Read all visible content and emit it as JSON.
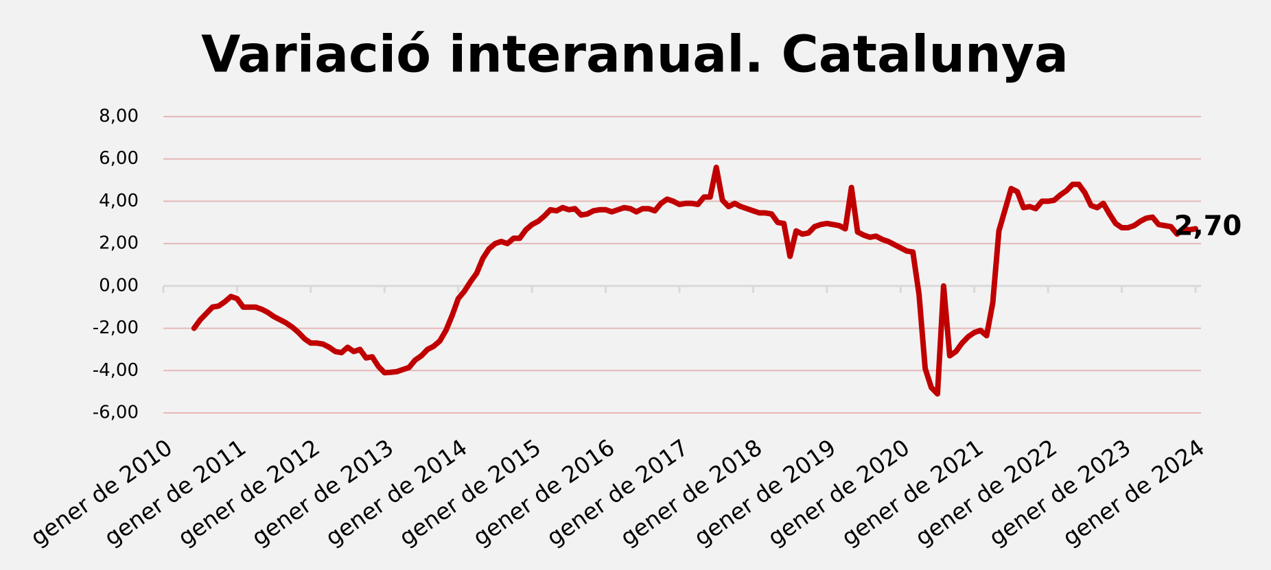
{
  "chart_data": {
    "type": "line",
    "title": "Variació interanual. Catalunya",
    "categories": [
      "gener de 2010",
      null,
      null,
      null,
      null,
      null,
      null,
      null,
      null,
      null,
      null,
      null,
      "gener de 2011",
      null,
      null,
      null,
      null,
      null,
      null,
      null,
      null,
      null,
      null,
      null,
      "gener de 2012",
      null,
      null,
      null,
      null,
      null,
      null,
      null,
      null,
      null,
      null,
      null,
      "gener de 2013",
      null,
      null,
      null,
      null,
      null,
      null,
      null,
      null,
      null,
      null,
      null,
      "gener de 2014",
      null,
      null,
      null,
      null,
      null,
      null,
      null,
      null,
      null,
      null,
      null,
      "gener de 2015",
      null,
      null,
      null,
      null,
      null,
      null,
      null,
      null,
      null,
      null,
      null,
      "gener de 2016",
      null,
      null,
      null,
      null,
      null,
      null,
      null,
      null,
      null,
      null,
      null,
      "gener de 2017",
      null,
      null,
      null,
      null,
      null,
      null,
      null,
      null,
      null,
      null,
      null,
      "gener de 2018",
      null,
      null,
      null,
      null,
      null,
      null,
      null,
      null,
      null,
      null,
      null,
      "gener de 2019",
      null,
      null,
      null,
      null,
      null,
      null,
      null,
      null,
      null,
      null,
      null,
      "gener de 2020",
      null,
      null,
      null,
      null,
      null,
      null,
      null,
      null,
      null,
      null,
      null,
      "gener de 2021",
      null,
      null,
      null,
      null,
      null,
      null,
      null,
      null,
      null,
      null,
      null,
      "gener de 2022",
      null,
      null,
      null,
      null,
      null,
      null,
      null,
      null,
      null,
      null,
      null,
      "gener de 2023",
      null,
      null,
      null,
      null,
      null,
      null,
      null,
      null,
      null,
      null,
      null,
      "gener de 2024"
    ],
    "values": [
      null,
      null,
      null,
      null,
      null,
      -2.0,
      -1.6,
      -1.3,
      -1.0,
      -0.95,
      -0.75,
      -0.5,
      -0.6,
      -1.0,
      -1.0,
      -1.0,
      -1.1,
      -1.25,
      -1.45,
      -1.6,
      -1.75,
      -1.95,
      -2.2,
      -2.5,
      -2.7,
      -2.7,
      -2.75,
      -2.9,
      -3.1,
      -3.15,
      -2.9,
      -3.1,
      -3.0,
      -3.4,
      -3.35,
      -3.8,
      -4.1,
      -4.08,
      -4.05,
      -3.95,
      -3.85,
      -3.5,
      -3.3,
      -3.0,
      -2.85,
      -2.6,
      -2.1,
      -1.4,
      -0.6,
      -0.25,
      0.2,
      0.6,
      1.3,
      1.75,
      2.0,
      2.1,
      2.0,
      2.25,
      2.25,
      2.65,
      2.9,
      3.05,
      3.3,
      3.6,
      3.55,
      3.7,
      3.6,
      3.65,
      3.35,
      3.4,
      3.55,
      3.6,
      3.6,
      3.5,
      3.6,
      3.7,
      3.65,
      3.5,
      3.65,
      3.65,
      3.55,
      3.9,
      4.1,
      4.0,
      3.85,
      3.9,
      3.9,
      3.85,
      4.2,
      4.2,
      5.6,
      4.05,
      3.75,
      3.9,
      3.75,
      3.65,
      3.55,
      3.45,
      3.45,
      3.4,
      3.0,
      2.95,
      1.4,
      2.6,
      2.45,
      2.5,
      2.8,
      2.9,
      2.95,
      2.9,
      2.85,
      2.7,
      4.65,
      2.55,
      2.4,
      2.3,
      2.35,
      2.2,
      2.1,
      1.95,
      1.8,
      1.65,
      1.6,
      -0.4,
      -3.9,
      -4.8,
      -5.1,
      0.0,
      -3.3,
      -3.1,
      -2.7,
      -2.4,
      -2.2,
      -2.1,
      -2.35,
      -0.8,
      2.6,
      3.6,
      4.6,
      4.45,
      3.7,
      3.75,
      3.65,
      4.0,
      4.0,
      4.05,
      4.3,
      4.5,
      4.8,
      4.8,
      4.4,
      3.8,
      3.7,
      3.9,
      3.4,
      2.95,
      2.75,
      2.75,
      2.85,
      3.05,
      3.2,
      3.25,
      2.9,
      2.85,
      2.8,
      2.45,
      2.7,
      2.65,
      2.7
    ],
    "value_labels": [
      null,
      null,
      null,
      null,
      null,
      null,
      null,
      null,
      null,
      null,
      null,
      null,
      null,
      null,
      null,
      null,
      null,
      null,
      null,
      null,
      null,
      null,
      null,
      null,
      null,
      null,
      null,
      null,
      null,
      null,
      null,
      null,
      null,
      null,
      null,
      null,
      null,
      null,
      null,
      null,
      null,
      null,
      null,
      null,
      null,
      null,
      null,
      null,
      null,
      null,
      null,
      null,
      null,
      null,
      null,
      null,
      null,
      null,
      null,
      null,
      null,
      null,
      null,
      null,
      null,
      null,
      null,
      null,
      null,
      null,
      null,
      null,
      null,
      null,
      null,
      null,
      null,
      null,
      null,
      null,
      null,
      null,
      null,
      null,
      null,
      null,
      null,
      null,
      null,
      null,
      null,
      null,
      null,
      null,
      null,
      null,
      null,
      null,
      null,
      null,
      null,
      null,
      null,
      null,
      null,
      null,
      null,
      null,
      null,
      null,
      null,
      null,
      null,
      null,
      null,
      null,
      null,
      null,
      null,
      null,
      null,
      null,
      null,
      null,
      null,
      null,
      null,
      null,
      null,
      null,
      null,
      null,
      null,
      null,
      null,
      null,
      null,
      null,
      null,
      null,
      null,
      null,
      null,
      null,
      null,
      null,
      null,
      null,
      null,
      null,
      null,
      null,
      null,
      null,
      null,
      null,
      null,
      null,
      null,
      null,
      null,
      null,
      null,
      null,
      null,
      null,
      null,
      null,
      "2,70"
    ],
    "color": "#c00000",
    "ylim": [
      -6,
      8
    ],
    "yticks": [
      {
        "value": -6,
        "label": "-6,00"
      },
      {
        "value": -4,
        "label": "-4,00"
      },
      {
        "value": -2,
        "label": "-2,00"
      },
      {
        "value": 0,
        "label": "0,00"
      },
      {
        "value": 2,
        "label": "2,00"
      },
      {
        "value": 4,
        "label": "4,00"
      },
      {
        "value": 6,
        "label": "6,00"
      },
      {
        "value": 8,
        "label": "8,00"
      }
    ],
    "grid": true
  }
}
